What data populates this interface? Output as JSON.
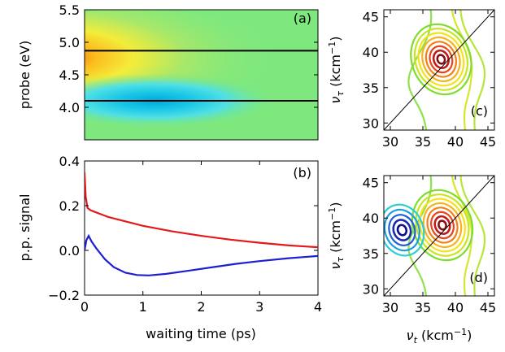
{
  "chart_data": [
    {
      "id": "a",
      "type": "heatmap",
      "panel_label": "(a)",
      "ylabel": "probe (eV)",
      "xlim": [
        0,
        4
      ],
      "ylim": [
        3.5,
        5.5
      ],
      "yticks": [
        "5.5",
        "5.0",
        "4.5",
        "4.0"
      ],
      "ytick_values": [
        5.5,
        5.0,
        4.5,
        4.0
      ],
      "horizontal_lines": [
        4.87,
        4.1
      ],
      "features": [
        {
          "kind": "positive",
          "x": 0.25,
          "y": 4.73,
          "amplitude": 1.0
        },
        {
          "kind": "negative",
          "x": 1.2,
          "y": 4.1,
          "amplitude": -0.55
        }
      ]
    },
    {
      "id": "b",
      "type": "line",
      "panel_label": "(b)",
      "xlabel": "waiting time (ps)",
      "ylabel": "p.p. signal",
      "xlim": [
        0,
        4
      ],
      "ylim": [
        -0.2,
        0.4
      ],
      "xticks": [
        "0",
        "1",
        "2",
        "3",
        "4"
      ],
      "xtick_values": [
        0,
        1,
        2,
        3,
        4
      ],
      "yticks": [
        "0.4",
        "0.2",
        "0.0",
        "−0.2"
      ],
      "ytick_values": [
        0.4,
        0.2,
        0.0,
        -0.2
      ],
      "series": [
        {
          "color": "#e31a1c",
          "x": [
            0.0,
            0.02,
            0.05,
            0.1,
            0.2,
            0.4,
            0.7,
            1.0,
            1.5,
            2.0,
            2.5,
            3.0,
            3.5,
            4.0
          ],
          "values": [
            0.35,
            0.24,
            0.19,
            0.18,
            0.17,
            0.15,
            0.13,
            0.11,
            0.085,
            0.065,
            0.048,
            0.034,
            0.022,
            0.014
          ]
        },
        {
          "color": "#1f1fd1",
          "x": [
            0.0,
            0.03,
            0.07,
            0.12,
            0.2,
            0.35,
            0.5,
            0.7,
            0.9,
            1.1,
            1.4,
            1.8,
            2.2,
            2.6,
            3.0,
            3.5,
            4.0
          ],
          "values": [
            0.0,
            0.045,
            0.065,
            0.04,
            0.01,
            -0.04,
            -0.075,
            -0.1,
            -0.11,
            -0.112,
            -0.105,
            -0.09,
            -0.075,
            -0.06,
            -0.048,
            -0.035,
            -0.025
          ]
        }
      ]
    },
    {
      "id": "c",
      "type": "contour",
      "panel_label": "(c)",
      "ylabel": "ντ (kcm⁻¹)",
      "xlim": [
        29,
        46
      ],
      "ylim": [
        29,
        46
      ],
      "yticks": [
        "45",
        "40",
        "35",
        "30"
      ],
      "ytick_values": [
        45,
        40,
        35,
        30
      ],
      "xticks": [
        "30",
        "35",
        "40",
        "45"
      ],
      "xtick_values": [
        30,
        35,
        40,
        45
      ],
      "peaks": [
        {
          "x": 37.8,
          "y": 39.0,
          "sign": "positive"
        }
      ]
    },
    {
      "id": "d",
      "type": "contour",
      "panel_label": "(d)",
      "xlabel": "νt (kcm⁻¹)",
      "ylabel": "ντ (kcm⁻¹)",
      "xlim": [
        29,
        46
      ],
      "ylim": [
        29,
        46
      ],
      "yticks": [
        "45",
        "40",
        "35",
        "30"
      ],
      "ytick_values": [
        45,
        40,
        35,
        30
      ],
      "xticks": [
        "30",
        "35",
        "40",
        "45"
      ],
      "xtick_values": [
        30,
        35,
        40,
        45
      ],
      "peaks": [
        {
          "x": 38.0,
          "y": 39.0,
          "sign": "positive"
        },
        {
          "x": 31.8,
          "y": 38.3,
          "sign": "negative"
        }
      ]
    }
  ]
}
